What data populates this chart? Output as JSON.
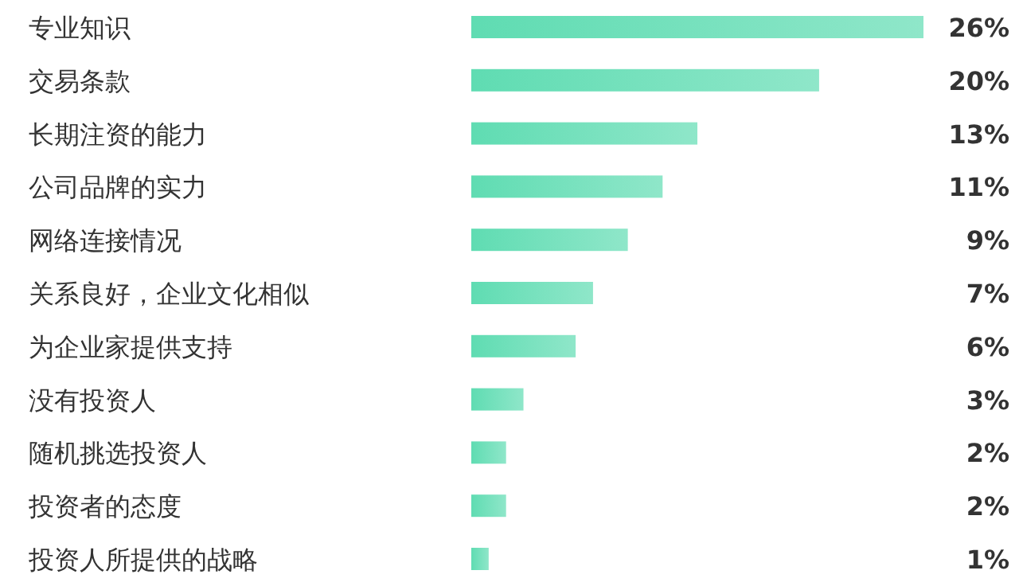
{
  "chart_data": {
    "type": "bar",
    "orientation": "horizontal",
    "categories": [
      "专业知识",
      "交易条款",
      "长期注资的能力",
      "公司品牌的实力",
      "网络连接情况",
      "关系良好，企业文化相似",
      "为企业家提供支持",
      "没有投资人",
      "随机挑选投资人",
      "投资者的态度",
      "投资人所提供的战略"
    ],
    "values": [
      26,
      20,
      13,
      11,
      9,
      7,
      6,
      3,
      2,
      2,
      1
    ],
    "value_labels": [
      "26%",
      "20%",
      "13%",
      "11%",
      "9%",
      "7%",
      "6%",
      "3%",
      "2%",
      "2%",
      "1%"
    ],
    "color": "#5fdcb2"
  }
}
